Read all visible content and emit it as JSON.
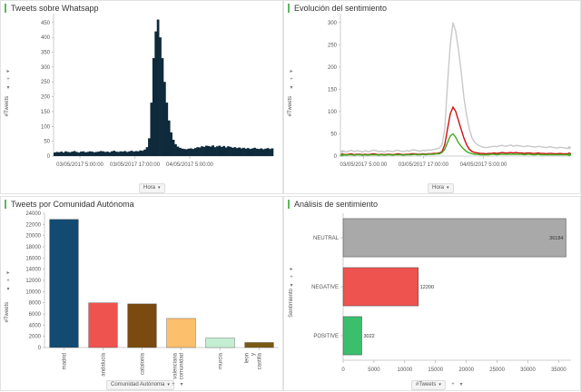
{
  "panels": {
    "tweets_whatsapp": {
      "title": "Tweets sobre Whatsapp",
      "y_control": "#Tweets",
      "x_control": "Hora",
      "side_controls": [
        "▸",
        "+",
        "▾"
      ]
    },
    "sentiment_evolution": {
      "title": "Evolución del sentimiento",
      "y_control": "#Tweets",
      "x_control": "Hora",
      "side_controls": [
        "▸",
        "+",
        "▾"
      ]
    },
    "tweets_region": {
      "title": "Tweets por Comunidad Autónoma",
      "y_control": "#Tweets",
      "x_control": "Comunidad Autónoma",
      "x_extra": [
        "+",
        "▾"
      ],
      "side_controls": [
        "▸",
        "+",
        "▾"
      ]
    },
    "sentiment_analysis": {
      "title": "Análisis de sentimiento",
      "y_control": "Sentimiento",
      "x_control": "#Tweets",
      "x_extra": [
        "+",
        "▾"
      ],
      "side_controls": [
        "▸",
        "+",
        "▾"
      ]
    }
  },
  "chart_data": [
    {
      "type": "area",
      "title": "Tweets sobre Whatsapp",
      "ylabel": "#Tweets",
      "xlabel": "Hora",
      "x_ticks": [
        "03/05/2017 5:00:00",
        "03/05/2017 17:00:00",
        "04/05/2017 5:00:00"
      ],
      "ylim": [
        0,
        480
      ],
      "y_ticks": [
        0,
        50,
        100,
        150,
        200,
        250,
        300,
        350,
        400,
        450
      ],
      "color": "#0e2a3b",
      "series": [
        {
          "values": [
            12,
            14,
            13,
            15,
            12,
            16,
            14,
            13,
            15,
            17,
            14,
            12,
            15,
            16,
            13,
            14,
            16,
            15,
            13,
            14,
            15,
            17,
            16,
            14,
            15,
            13,
            16,
            18,
            15,
            14,
            16,
            15,
            17,
            14,
            16,
            18,
            15,
            17,
            16,
            19,
            18,
            22,
            30,
            60,
            180,
            330,
            420,
            460,
            400,
            330,
            250,
            180,
            120,
            80,
            55,
            40,
            32,
            28,
            25,
            24,
            23,
            25,
            26,
            24,
            27,
            30,
            29,
            33,
            31,
            35,
            34,
            32,
            36,
            30,
            33,
            35,
            31,
            34,
            29,
            33,
            31,
            28,
            30,
            27,
            29,
            26,
            28,
            25,
            27,
            24,
            26,
            28,
            25,
            24,
            26,
            23,
            25,
            27,
            24,
            26
          ]
        }
      ]
    },
    {
      "type": "line",
      "title": "Evolución del sentimiento",
      "ylabel": "#Tweets",
      "xlabel": "Hora",
      "x_ticks": [
        "03/05/2017 5:00:00",
        "03/05/2017 17:00:00",
        "04/05/2017 5:00:00"
      ],
      "ylim": [
        0,
        320
      ],
      "y_ticks": [
        0,
        50,
        100,
        150,
        200,
        250,
        300
      ],
      "series": [
        {
          "color": "#c8c8c8",
          "values": [
            10,
            12,
            9,
            11,
            13,
            10,
            12,
            11,
            9,
            12,
            10,
            11,
            13,
            12,
            10,
            11,
            9,
            12,
            11,
            10,
            12,
            13,
            11,
            10,
            12,
            11,
            13,
            14,
            12,
            11,
            13,
            12,
            14,
            13,
            15,
            16,
            18,
            25,
            60,
            160,
            250,
            300,
            280,
            240,
            190,
            130,
            90,
            60,
            40,
            30,
            25,
            22,
            20,
            19,
            20,
            21,
            22,
            21,
            23,
            24,
            22,
            23,
            25,
            22,
            24,
            23,
            22,
            21,
            23,
            22,
            21,
            20,
            22,
            21,
            20,
            19,
            21,
            20,
            19,
            18,
            20,
            19,
            18,
            17,
            19
          ]
        },
        {
          "color": "#cc1111",
          "values": [
            3,
            4,
            3,
            4,
            5,
            3,
            4,
            4,
            3,
            4,
            3,
            4,
            5,
            4,
            3,
            4,
            3,
            4,
            4,
            3,
            4,
            5,
            4,
            3,
            4,
            4,
            5,
            5,
            4,
            4,
            5,
            4,
            5,
            5,
            6,
            6,
            7,
            10,
            25,
            60,
            95,
            110,
            100,
            80,
            60,
            40,
            25,
            15,
            10,
            8,
            7,
            6,
            6,
            5,
            6,
            6,
            7,
            6,
            7,
            8,
            7,
            7,
            8,
            7,
            8,
            7,
            7,
            6,
            7,
            7,
            6,
            6,
            7,
            6,
            6,
            5,
            6,
            6,
            5,
            5,
            6,
            5,
            5,
            5,
            5
          ]
        },
        {
          "color": "#44aa22",
          "values": [
            2,
            3,
            2,
            3,
            3,
            2,
            3,
            3,
            2,
            3,
            2,
            3,
            3,
            3,
            2,
            3,
            2,
            3,
            3,
            2,
            3,
            3,
            3,
            2,
            3,
            3,
            3,
            4,
            3,
            3,
            4,
            3,
            4,
            4,
            4,
            5,
            5,
            8,
            15,
            30,
            45,
            50,
            42,
            30,
            22,
            15,
            10,
            7,
            5,
            4,
            4,
            3,
            3,
            3,
            3,
            4,
            4,
            3,
            4,
            4,
            4,
            4,
            4,
            4,
            4,
            4,
            4,
            3,
            4,
            4,
            3,
            3,
            4,
            3,
            3,
            3,
            3,
            3,
            3,
            3,
            3,
            3,
            3,
            3,
            3
          ]
        }
      ]
    },
    {
      "type": "bar",
      "title": "Tweets por Comunidad Autónoma",
      "ylabel": "#Tweets",
      "xlabel": "Comunidad Autónoma",
      "categories": [
        "madrid",
        "andalucia",
        "catalonia",
        "comunidad valenciana",
        "murcia",
        "castilla y leon"
      ],
      "values": [
        22900,
        8000,
        7800,
        5200,
        1700,
        900
      ],
      "colors": [
        "#134a72",
        "#ef5350",
        "#7a4a10",
        "#fcbf6b",
        "#c4eed2",
        "#7a5a12"
      ],
      "ylim": [
        0,
        24000
      ],
      "y_ticks": [
        0,
        2000,
        4000,
        6000,
        8000,
        10000,
        12000,
        14000,
        16000,
        18000,
        20000,
        22000,
        24000
      ]
    },
    {
      "type": "bar",
      "orientation": "horizontal",
      "title": "Análisis de sentimiento",
      "ylabel": "Sentimiento",
      "xlabel": "#Tweets",
      "categories": [
        "NEUTRAL",
        "NEGATIVE",
        "POSITIVE"
      ],
      "values": [
        36184,
        12200,
        3022
      ],
      "colors": [
        "#a9a9a9",
        "#ef5350",
        "#3bbf6c"
      ],
      "xlim": [
        0,
        37000
      ],
      "x_ticks": [
        0,
        5000,
        10000,
        15000,
        20000,
        25000,
        30000,
        35000
      ]
    }
  ]
}
